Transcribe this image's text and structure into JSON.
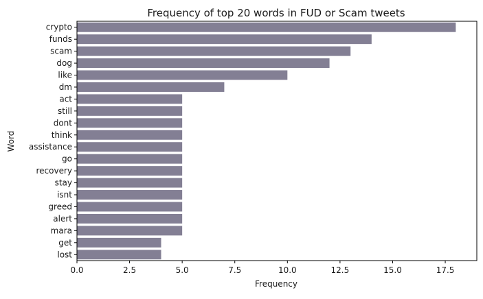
{
  "chart_data": {
    "type": "bar",
    "orientation": "horizontal",
    "title": "Frequency of top 20 words in FUD or Scam tweets",
    "xlabel": "Frequency",
    "ylabel": "Word",
    "categories": [
      "crypto",
      "funds",
      "scam",
      "dog",
      "like",
      "dm",
      "act",
      "still",
      "dont",
      "think",
      "assistance",
      "go",
      "recovery",
      "stay",
      "isnt",
      "greed",
      "alert",
      "mara",
      "get",
      "lost"
    ],
    "values": [
      18,
      14,
      13,
      12,
      10,
      7,
      5,
      5,
      5,
      5,
      5,
      5,
      5,
      5,
      5,
      5,
      5,
      5,
      4,
      4
    ],
    "xlim": [
      0,
      19
    ],
    "xticks": [
      "0.0",
      "2.5",
      "5.0",
      "7.5",
      "10.0",
      "12.5",
      "15.0",
      "17.5"
    ],
    "grid": false,
    "bar_color": "#837f94"
  }
}
